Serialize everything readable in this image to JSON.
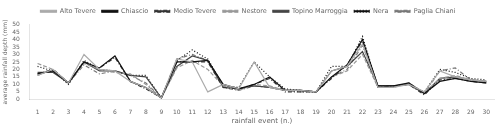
{
  "chart_data": {
    "type": "line",
    "xlabel": "rainfall event (n.)",
    "ylabel": "average rainfall depth (mm)",
    "x": [
      1,
      2,
      3,
      4,
      5,
      6,
      7,
      8,
      9,
      10,
      11,
      12,
      13,
      14,
      15,
      16,
      17,
      18,
      19,
      20,
      21,
      22,
      23,
      24,
      25,
      26,
      27,
      28,
      29,
      30
    ],
    "xlim": [
      0.5,
      30.5
    ],
    "xticks": [
      1,
      2,
      3,
      4,
      5,
      6,
      7,
      8,
      9,
      10,
      11,
      12,
      13,
      14,
      15,
      16,
      17,
      18,
      19,
      20,
      21,
      22,
      23,
      24,
      25,
      26,
      27,
      28,
      29,
      30
    ],
    "ylim": [
      0,
      50
    ],
    "yticks": [
      0,
      5,
      10,
      15,
      20,
      25,
      30,
      35,
      40,
      45,
      50
    ],
    "grid": false,
    "legend": "top",
    "series": [
      {
        "name": "Alto Tevere",
        "color": "#aaaaaa",
        "line_style": "solid",
        "values": [
          16,
          20,
          11,
          30,
          20,
          19,
          12,
          8,
          1,
          27,
          25,
          5,
          10,
          7,
          25,
          8,
          6,
          6,
          5,
          19,
          22,
          37,
          8,
          8,
          10,
          5,
          19,
          15,
          13,
          12
        ]
      },
      {
        "name": "Chiascio",
        "color": "#111111",
        "line_style": "solid",
        "values": [
          17,
          19,
          11,
          25,
          21,
          29,
          12,
          8,
          1,
          25,
          25,
          26,
          10,
          7,
          10,
          15,
          6,
          6,
          5,
          15,
          23,
          40,
          9,
          9,
          11,
          4,
          12,
          14,
          12,
          11
        ]
      },
      {
        "name": "Medio Tevere",
        "color": "#333333",
        "line_style": "dashdot",
        "values": [
          17,
          20,
          11,
          25,
          21,
          28,
          12,
          7,
          1,
          25,
          25,
          25,
          8,
          7,
          10,
          14,
          5,
          5,
          5,
          14,
          23,
          39,
          8,
          9,
          10,
          3,
          13,
          14,
          12,
          11
        ]
      },
      {
        "name": "Nestore",
        "color": "#999999",
        "line_style": "dashed",
        "values": [
          24,
          20,
          11,
          24,
          20,
          18,
          17,
          10,
          1,
          21,
          26,
          20,
          9,
          6,
          10,
          9,
          6,
          6,
          5,
          15,
          19,
          30,
          8,
          8,
          11,
          4,
          14,
          16,
          13,
          12
        ]
      },
      {
        "name": "Topino Marroggia",
        "color": "#444444",
        "line_style": "solid",
        "values": [
          18,
          18,
          11,
          25,
          19,
          19,
          16,
          15,
          1,
          22,
          29,
          26,
          8,
          7,
          9,
          8,
          6,
          6,
          5,
          19,
          22,
          32,
          9,
          9,
          10,
          4,
          14,
          15,
          13,
          12
        ]
      },
      {
        "name": "Nera",
        "color": "#111111",
        "line_style": "dotted",
        "values": [
          22,
          19,
          10,
          26,
          20,
          19,
          16,
          16,
          1,
          26,
          33,
          27,
          9,
          8,
          25,
          15,
          7,
          6,
          5,
          22,
          22,
          42,
          8,
          9,
          10,
          5,
          20,
          18,
          14,
          13
        ]
      },
      {
        "name": "Paglia Chiani",
        "color": "#777777",
        "line_style": "dashdot",
        "values": [
          16,
          20,
          11,
          23,
          17,
          19,
          16,
          11,
          1,
          27,
          30,
          26,
          8,
          6,
          9,
          8,
          6,
          5,
          5,
          15,
          20,
          36,
          9,
          9,
          10,
          4,
          19,
          21,
          13,
          12
        ]
      }
    ]
  }
}
